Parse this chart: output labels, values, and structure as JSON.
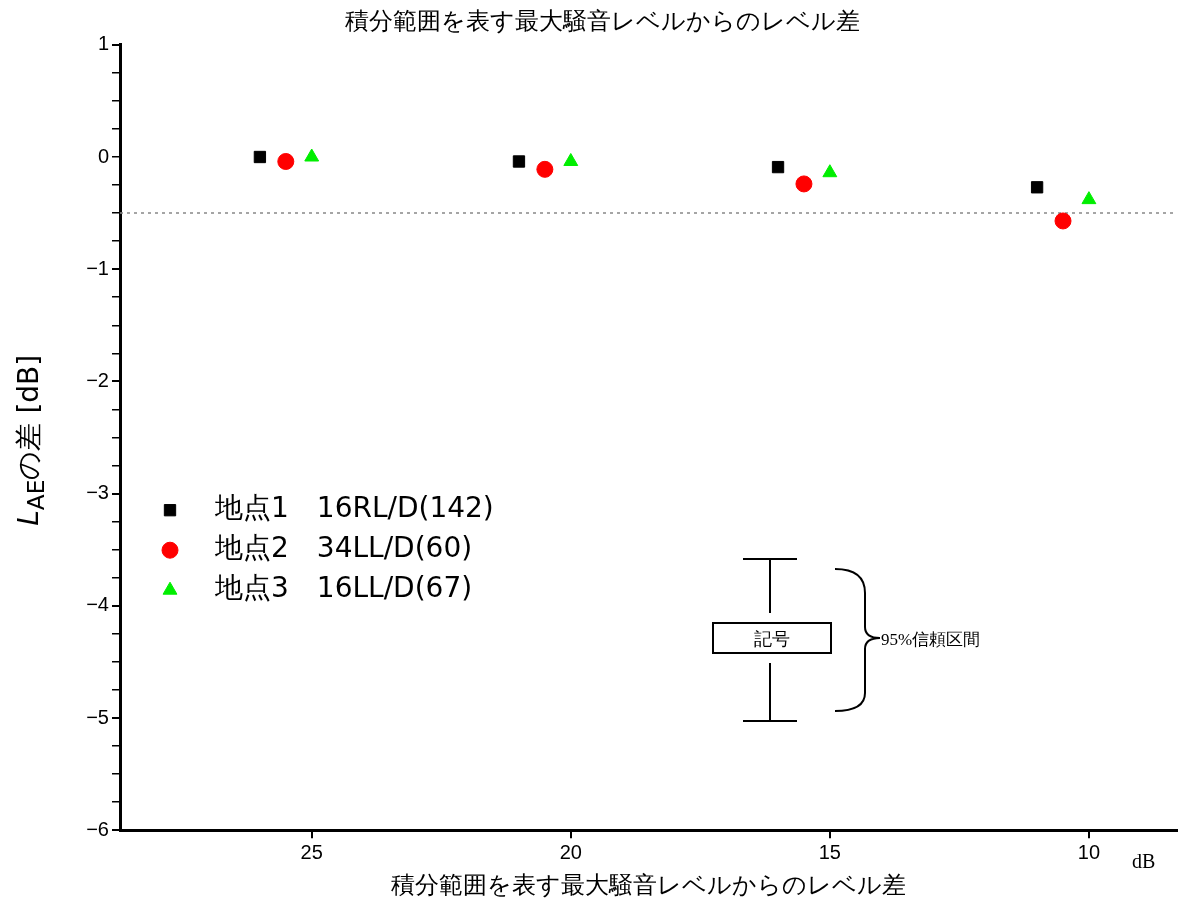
{
  "chart_data": {
    "type": "scatter",
    "title": "積分範囲を表す最大騒音レベルからのレベル差",
    "xlabel": "積分範囲を表す最大騒音レベルからのレベル差",
    "ylabel": "L$_{AE}$の差 [dB]",
    "xlim": [
      28.7,
      8.3
    ],
    "xticks": [
      25,
      20,
      15,
      10
    ],
    "ylim": [
      -6,
      1
    ],
    "yticks": [
      -6,
      {
        "value": -5.75,
        "label": null
      },
      {
        "value": -5.5,
        "label": null
      },
      {
        "value": -5.25,
        "label": null
      },
      -5,
      {
        "value": -4.75,
        "label": null
      },
      {
        "value": -4.5,
        "label": null
      },
      {
        "value": -4.25,
        "label": null
      },
      -4,
      {
        "value": -3.75,
        "label": null
      },
      {
        "value": -3.5,
        "label": null
      },
      {
        "value": -3.25,
        "label": null
      },
      -3,
      {
        "value": -2.75,
        "label": null
      },
      {
        "value": -2.5,
        "label": null
      },
      {
        "value": -2.25,
        "label": null
      },
      -2,
      {
        "value": -1.75,
        "label": null
      },
      {
        "value": -1.5,
        "label": null
      },
      {
        "value": -1.25,
        "label": null
      },
      -1,
      {
        "value": -0.75,
        "label": null
      },
      {
        "value": -0.5,
        "label": null
      },
      {
        "value": -0.25,
        "label": null
      },
      0,
      {
        "value": 0.25,
        "label": null
      },
      {
        "value": 0.5,
        "label": null
      },
      {
        "value": 0.75,
        "label": null
      },
      1
    ],
    "series": [
      {
        "name": "地点1　16RL/D(142)",
        "color": "#000000",
        "marker": "square",
        "x": [
          26,
          21,
          16,
          11
        ],
        "values": [
          0,
          -0.04,
          -0.09,
          -0.27
        ]
      },
      {
        "name": "地点2　34LL/D(60)",
        "color": "#ff0000",
        "marker": "circle",
        "x": [
          25.5,
          20.5,
          15.5,
          10.5
        ],
        "values": [
          -0.04,
          -0.11,
          -0.24,
          -0.57
        ]
      },
      {
        "name": "地点3　16LL/D(67)",
        "color": "#00ee00",
        "marker": "triangle",
        "x": [
          25,
          20,
          15,
          10
        ],
        "values": [
          0,
          -0.04,
          -0.14,
          -0.38
        ]
      }
    ],
    "ref_lines": [
      {
        "axis": "y",
        "value": -0.5,
        "color": "#888888",
        "line_style": "dotted"
      }
    ],
    "annotations": [
      "記号",
      "95%信頼区間",
      "dB"
    ],
    "legend": "bottom left",
    "grid": false
  }
}
